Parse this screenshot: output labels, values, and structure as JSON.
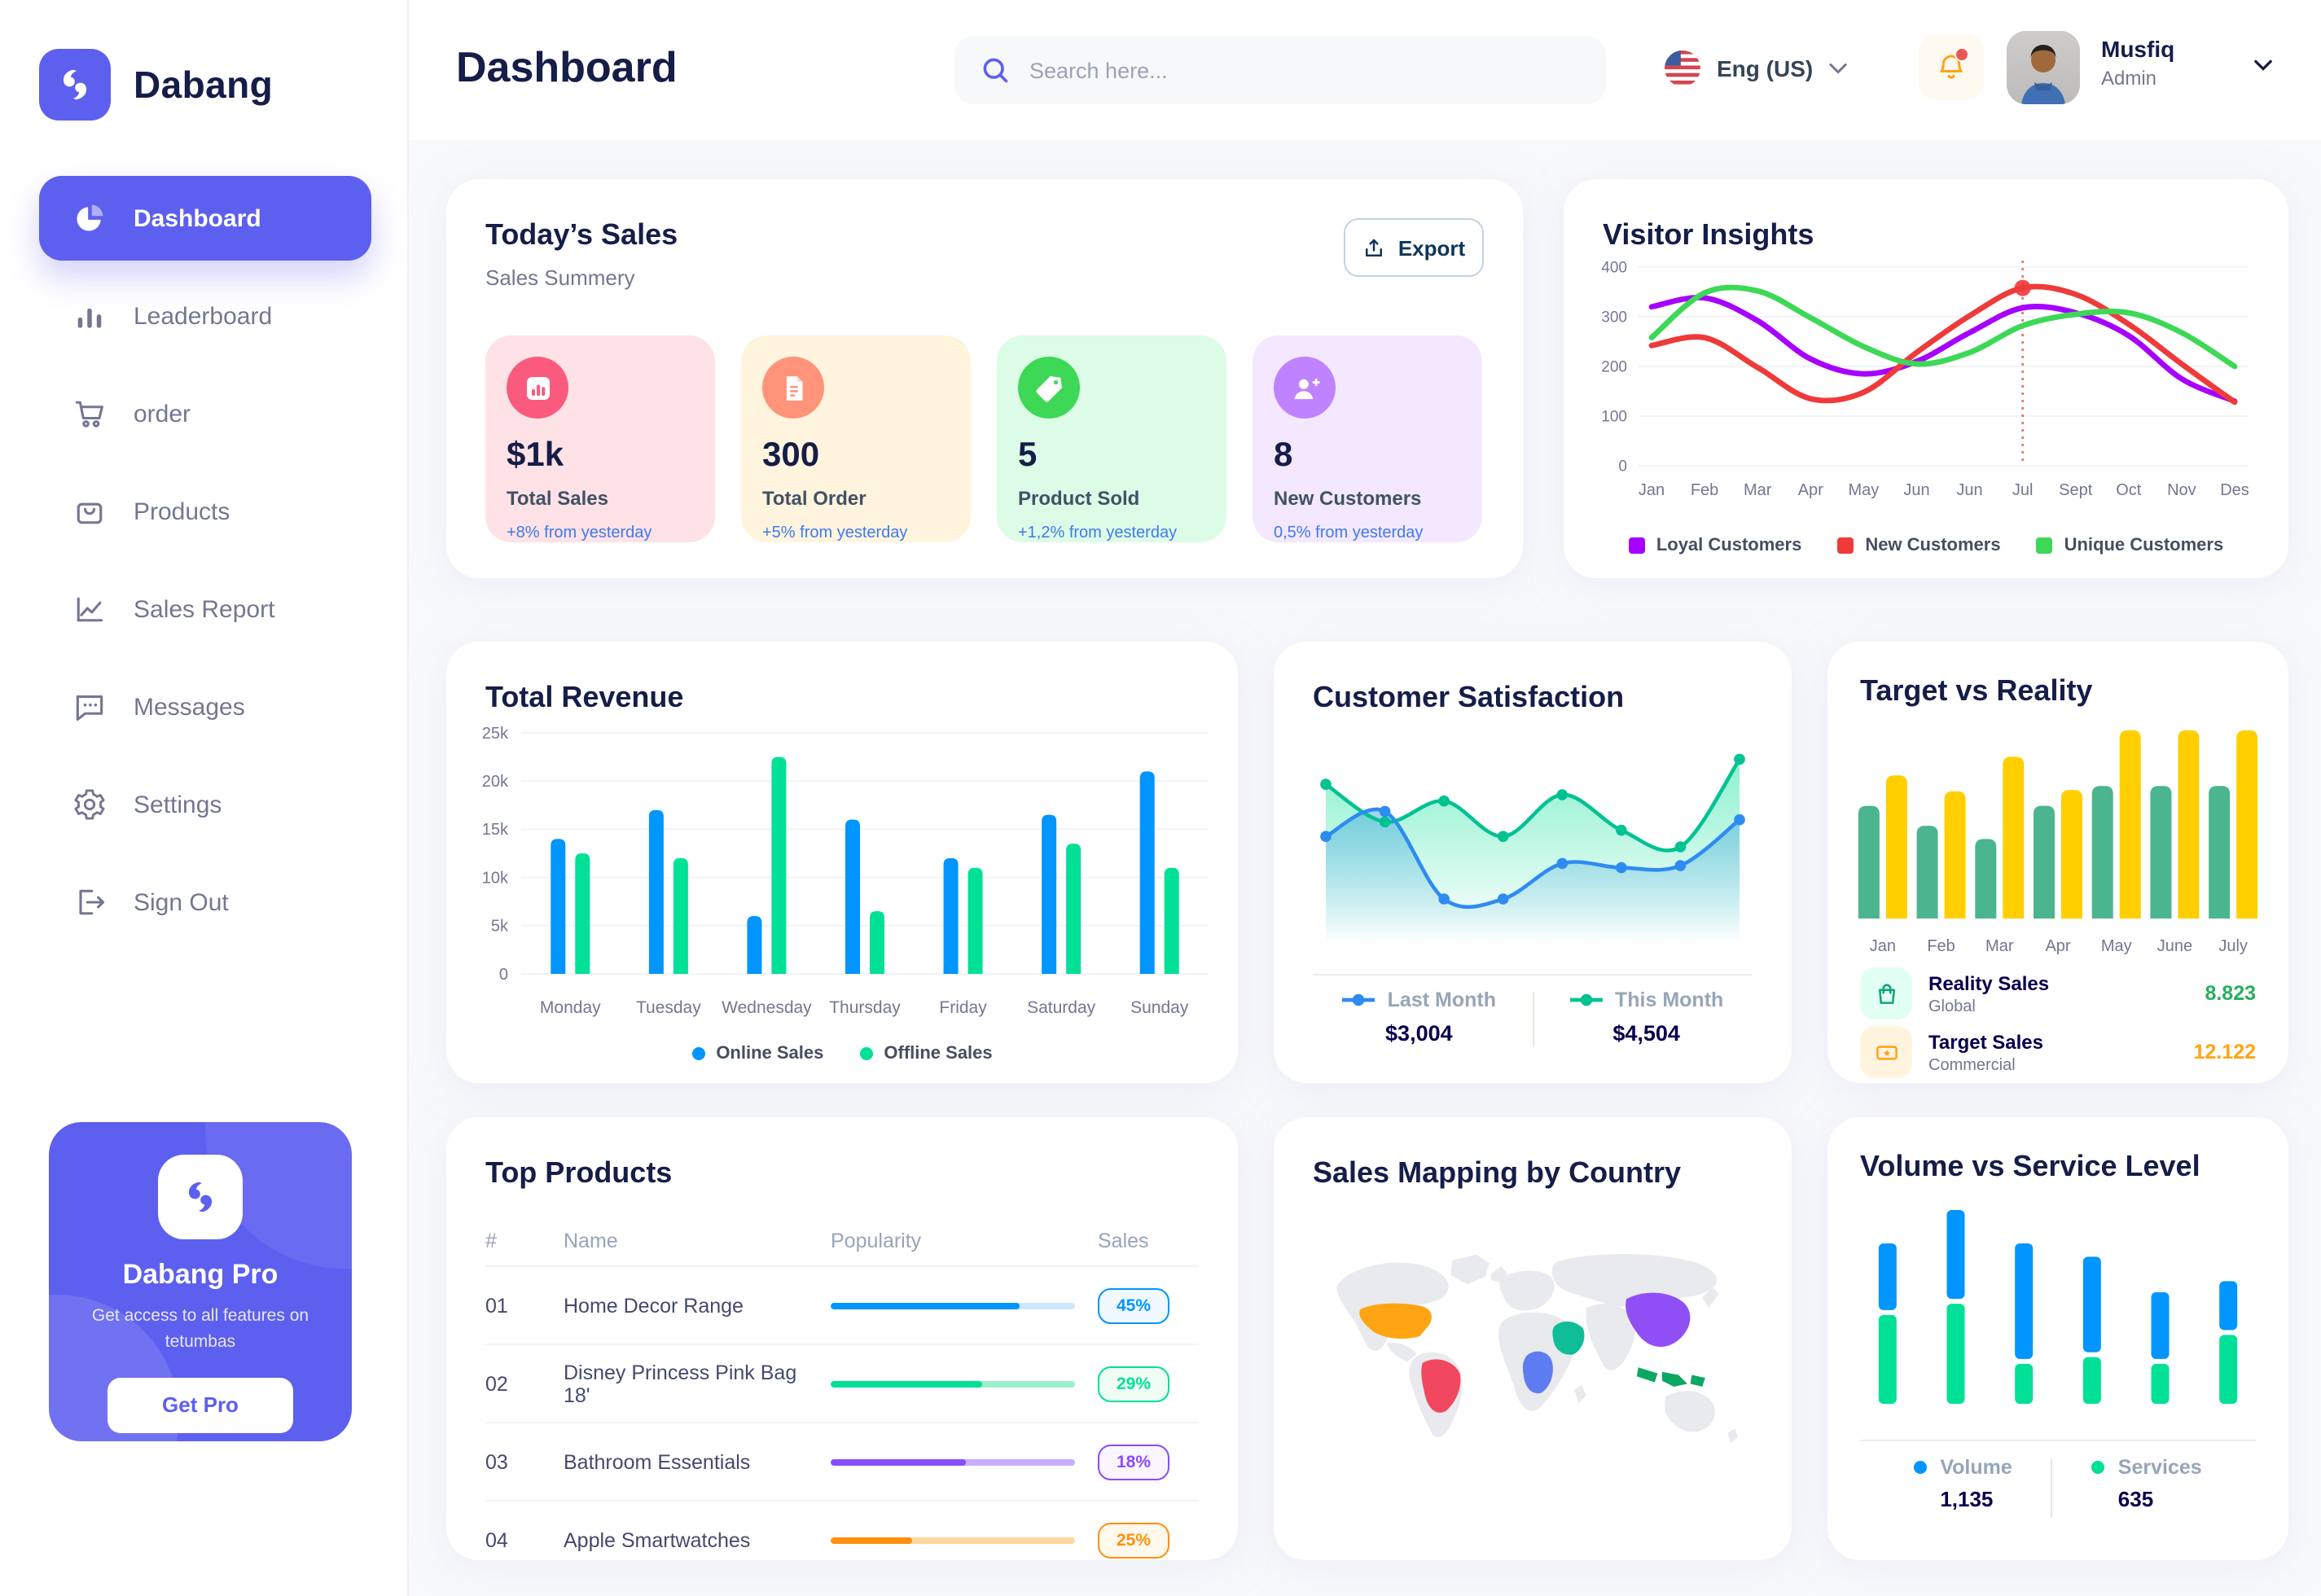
{
  "app": {
    "logo_text": "Dabang",
    "accent_color": "#5D5FEF"
  },
  "sidebar": {
    "nav": [
      {
        "label": "Dashboard",
        "icon": "pie-chart-icon",
        "active": true
      },
      {
        "label": "Leaderboard",
        "icon": "bar-chart-icon",
        "active": false
      },
      {
        "label": "order",
        "icon": "cart-icon",
        "active": false
      },
      {
        "label": "Products",
        "icon": "bag-icon",
        "active": false
      },
      {
        "label": "Sales Report",
        "icon": "line-chart-icon",
        "active": false
      },
      {
        "label": "Messages",
        "icon": "message-icon",
        "active": false
      },
      {
        "label": "Settings",
        "icon": "gear-icon",
        "active": false
      },
      {
        "label": "Sign Out",
        "icon": "sign-out-icon",
        "active": false
      }
    ],
    "pro_card": {
      "title": "Dabang Pro",
      "description": "Get access to all features on tetumbas",
      "button_label": "Get Pro"
    }
  },
  "header": {
    "title": "Dashboard",
    "search_placeholder": "Search here...",
    "language": "Eng (US)",
    "user_name": "Musfiq",
    "user_role": "Admin"
  },
  "today_sales": {
    "title": "Today’s Sales",
    "subtitle": "Sales Summery",
    "export_label": "Export",
    "cards": [
      {
        "value": "$1k",
        "label": "Total Sales",
        "delta": "+8% from yesterday",
        "bg": "#FFE2E5",
        "icon_bg": "#FA5A7D",
        "icon": "stat-chart-icon"
      },
      {
        "value": "300",
        "label": "Total Order",
        "delta": "+5% from yesterday",
        "bg": "#FFF4DE",
        "icon_bg": "#FF947A",
        "icon": "stat-file-icon"
      },
      {
        "value": "5",
        "label": "Product Sold",
        "delta": "+1,2% from yesterday",
        "bg": "#DCFCE7",
        "icon_bg": "#3CD856",
        "icon": "stat-tag-icon"
      },
      {
        "value": "8",
        "label": "New Customers",
        "delta": "0,5% from yesterday",
        "bg": "#F3E8FF",
        "icon_bg": "#BF83FF",
        "icon": "stat-user-plus-icon"
      }
    ]
  },
  "visitor_insights": {
    "title": "Visitor Insights",
    "chart_data": {
      "type": "line",
      "x_labels": [
        "Jan",
        "Feb",
        "Mar",
        "Apr",
        "May",
        "Jun",
        "Jun",
        "Jul",
        "Sept",
        "Oct",
        "Nov",
        "Des"
      ],
      "y_tick_labels": [
        "0",
        "100",
        "200",
        "300",
        "400"
      ],
      "y_ticks": [
        0,
        100,
        200,
        300,
        400
      ],
      "ylim": [
        0,
        400
      ],
      "series": [
        {
          "name": "Loyal Customers",
          "color": "#A700FF",
          "values": [
            320,
            338,
            292,
            215,
            185,
            210,
            268,
            318,
            308,
            262,
            175,
            130
          ]
        },
        {
          "name": "New Customers",
          "color": "#EF3A3A",
          "values": [
            242,
            258,
            198,
            135,
            148,
            228,
            302,
            358,
            345,
            285,
            205,
            128
          ]
        },
        {
          "name": "Unique Customers",
          "color": "#3CD856",
          "values": [
            258,
            348,
            352,
            298,
            240,
            205,
            228,
            282,
            305,
            308,
            268,
            200
          ]
        }
      ],
      "highlight": {
        "series_index": 1,
        "point_index": 7
      }
    }
  },
  "total_revenue": {
    "title": "Total Revenue",
    "chart_data": {
      "type": "bar",
      "categories": [
        "Monday",
        "Tuesday",
        "Wednesday",
        "Thursday",
        "Friday",
        "Saturday",
        "Sunday"
      ],
      "y_tick_labels": [
        "0",
        "5k",
        "10k",
        "15k",
        "20k",
        "25k"
      ],
      "y_ticks": [
        0,
        5,
        10,
        15,
        20,
        25
      ],
      "ylim": [
        0,
        25
      ],
      "series": [
        {
          "name": "Online Sales",
          "color": "#0095FF",
          "values": [
            14,
            17,
            6,
            16,
            12,
            16.5,
            21
          ]
        },
        {
          "name": "Offline Sales",
          "color": "#00E096",
          "values": [
            12.5,
            12,
            22.5,
            6.5,
            11,
            13.5,
            11
          ]
        }
      ]
    }
  },
  "customer_satisfaction": {
    "title": "Customer Satisfaction",
    "chart_data": {
      "type": "area",
      "ylim": [
        0,
        100
      ],
      "series": [
        {
          "name": "This Month",
          "color": "#00C292",
          "fill": "#00E096",
          "value_label": "$4,504",
          "values": [
            80,
            62,
            72,
            55,
            75,
            58,
            50,
            92
          ]
        },
        {
          "name": "Last Month",
          "color": "#2E8BF0",
          "fill": "#2D9CDB",
          "value_label": "$3,004",
          "values": [
            55,
            67,
            25,
            25,
            42,
            40,
            41,
            63
          ]
        }
      ],
      "legend_order": [
        "Last Month",
        "This Month"
      ]
    },
    "legend": [
      {
        "label": "Last Month",
        "value": "$3,004",
        "color": "#2E8BF0"
      },
      {
        "label": "This Month",
        "value": "$4,504",
        "color": "#00C292"
      }
    ]
  },
  "target_reality": {
    "title": "Target vs Reality",
    "chart_data": {
      "type": "bar",
      "categories": [
        "Jan",
        "Feb",
        "Mar",
        "Apr",
        "May",
        "June",
        "July"
      ],
      "ylim": [
        0,
        14.5
      ],
      "series": [
        {
          "name": "Reality Sales",
          "color": "#4AB58E",
          "values": [
            8.5,
            7,
            6,
            8.5,
            10,
            10,
            10
          ]
        },
        {
          "name": "Target Sales",
          "color": "#FFCF00",
          "values": [
            10.8,
            9.6,
            12.2,
            9.7,
            14.2,
            14.2,
            14.2
          ]
        }
      ]
    },
    "legend": [
      {
        "label": "Reality Sales",
        "sub": "Global",
        "value": "8.823",
        "value_color": "#27AE60",
        "tile_bg": "#E2FFF3",
        "icon_color": "#12A37B",
        "icon": "bag-small-icon"
      },
      {
        "label": "Target Sales",
        "sub": "Commercial",
        "value": "12.122",
        "value_color": "#FFA412",
        "tile_bg": "#FFF4DE",
        "icon_color": "#FFA412",
        "icon": "ticket-icon"
      }
    ]
  },
  "top_products": {
    "title": "Top Products",
    "columns": [
      "#",
      "Name",
      "Popularity",
      "Sales"
    ],
    "rows": [
      {
        "num": "01",
        "name": "Home Decor Range",
        "popularity_percent": 77,
        "sales": "45%",
        "color": "#0095FF",
        "track": "#CDE7FF",
        "badge_bg": "#F0F9FF"
      },
      {
        "num": "02",
        "name": "Disney Princess Pink Bag 18'",
        "popularity_percent": 62,
        "sales": "29%",
        "color": "#00E096",
        "track": "#9BF0CC",
        "badge_bg": "#F0FDF4"
      },
      {
        "num": "03",
        "name": "Bathroom Essentials",
        "popularity_percent": 55,
        "sales": "18%",
        "color": "#884DFF",
        "track": "#C9ADFF",
        "badge_bg": "#FBF5FF"
      },
      {
        "num": "04",
        "name": "Apple Smartwatches",
        "popularity_percent": 33,
        "sales": "25%",
        "color": "#FF8F0D",
        "track": "#FFD89F",
        "badge_bg": "#FFF8EC"
      }
    ]
  },
  "sales_map": {
    "title": "Sales Mapping by Country",
    "base_color": "#E9EAEE",
    "countries": [
      {
        "id": "us",
        "name": "United States",
        "color": "#FFA412"
      },
      {
        "id": "brazil",
        "name": "Brazil",
        "color": "#F1485F"
      },
      {
        "id": "saudi",
        "name": "Saudi Arabia",
        "color": "#0FBE97"
      },
      {
        "id": "congo",
        "name": "DR Congo",
        "color": "#5E7CF2"
      },
      {
        "id": "china",
        "name": "China",
        "color": "#8F4FF5"
      },
      {
        "id": "indonesia",
        "name": "Indonesia",
        "color": "#0CA863"
      }
    ]
  },
  "volume_service": {
    "title": "Volume vs Service Level",
    "chart_data": {
      "type": "bar-stacked",
      "series": [
        {
          "name": "Volume",
          "color": "#0095FF",
          "total_label": "1,135",
          "values": [
            30,
            40,
            52,
            43,
            30,
            22
          ]
        },
        {
          "name": "Services",
          "color": "#00E096",
          "total_label": "635",
          "values": [
            40,
            45,
            18,
            21,
            18,
            31
          ]
        }
      ]
    }
  }
}
